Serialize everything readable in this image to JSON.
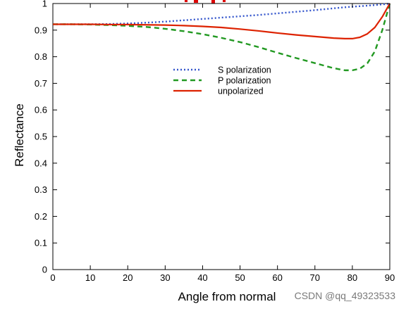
{
  "chart_data": {
    "type": "line",
    "title": "",
    "xlabel": "Angle from normal",
    "ylabel": "Reflectance",
    "xlim": [
      0,
      90
    ],
    "ylim": [
      0,
      1
    ],
    "xticks": [
      "0",
      "10",
      "20",
      "30",
      "40",
      "50",
      "60",
      "70",
      "80",
      "90"
    ],
    "yticks": [
      "0",
      "0.1",
      "0.2",
      "0.3",
      "0.4",
      "0.5",
      "0.6",
      "0.7",
      "0.8",
      "0.9",
      "1"
    ],
    "grid": false,
    "legend_position": "center",
    "x": [
      0,
      5,
      10,
      15,
      20,
      25,
      30,
      35,
      40,
      45,
      50,
      55,
      60,
      65,
      70,
      75,
      78,
      80,
      82,
      84,
      86,
      88,
      89,
      90
    ],
    "series": [
      {
        "name": "S polarization",
        "style": "dotted",
        "color": "#3355cc",
        "values": [
          0.922,
          0.922,
          0.922,
          0.923,
          0.925,
          0.928,
          0.932,
          0.937,
          0.942,
          0.947,
          0.952,
          0.957,
          0.963,
          0.969,
          0.975,
          0.982,
          0.986,
          0.988,
          0.99,
          0.992,
          0.994,
          0.997,
          0.998,
          1.0
        ]
      },
      {
        "name": "P polarization",
        "style": "dashed",
        "color": "#229922",
        "values": [
          0.922,
          0.922,
          0.921,
          0.919,
          0.916,
          0.912,
          0.905,
          0.896,
          0.885,
          0.871,
          0.855,
          0.836,
          0.815,
          0.795,
          0.776,
          0.757,
          0.749,
          0.749,
          0.755,
          0.775,
          0.82,
          0.9,
          0.95,
          1.0
        ]
      },
      {
        "name": "unpolarized",
        "style": "solid",
        "color": "#dd2200",
        "values": [
          0.922,
          0.922,
          0.922,
          0.921,
          0.921,
          0.92,
          0.919,
          0.917,
          0.914,
          0.91,
          0.904,
          0.897,
          0.889,
          0.882,
          0.876,
          0.87,
          0.868,
          0.868,
          0.873,
          0.886,
          0.91,
          0.95,
          0.975,
          1.0
        ]
      }
    ]
  },
  "watermark": "CSDN @qq_49323533"
}
